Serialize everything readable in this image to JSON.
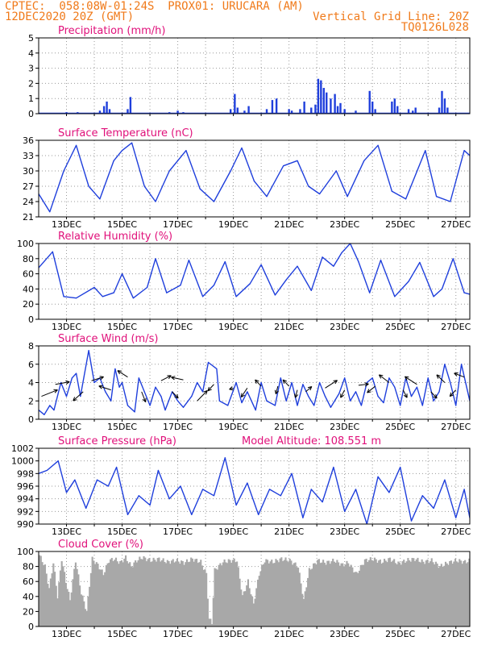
{
  "header": {
    "line1_left": "CPTEC:  058:08W-01:24S  PROX01: URUCARA (AM)",
    "line2_left": "12DEC2020 20Z (GMT)",
    "line2_right": "Vertical Grid Line: 20Z",
    "line3_right": "TQ0126L028"
  },
  "colors": {
    "header": "#f07a1a",
    "panel_title": "#e0107a",
    "series": "#1f3fdc",
    "cloud": "#a8a8a8",
    "grid": "#999999"
  },
  "x_axis": {
    "start_label": "12DEC2020 20Z",
    "tick_labels": [
      "13DEC",
      "15DEC",
      "17DEC",
      "19DEC",
      "21DEC",
      "23DEC",
      "25DEC",
      "27DEC"
    ],
    "tick_days": [
      1,
      3,
      5,
      7,
      9,
      11,
      13,
      15
    ]
  },
  "chart_data": [
    {
      "type": "bar",
      "title": "Precipitation (mm/h)",
      "ylim": [
        0,
        5
      ],
      "yticks": [
        0,
        1,
        2,
        3,
        4,
        5
      ],
      "bars": [
        [
          1.0,
          0.1
        ],
        [
          1.4,
          0.1
        ],
        [
          2.2,
          0.2
        ],
        [
          2.35,
          0.5
        ],
        [
          2.45,
          0.8
        ],
        [
          2.55,
          0.3
        ],
        [
          3.2,
          0.3
        ],
        [
          3.3,
          1.1
        ],
        [
          4.7,
          0.1
        ],
        [
          5.0,
          0.2
        ],
        [
          5.2,
          0.1
        ],
        [
          6.9,
          0.3
        ],
        [
          7.05,
          1.3
        ],
        [
          7.15,
          0.4
        ],
        [
          7.4,
          0.2
        ],
        [
          7.55,
          0.5
        ],
        [
          8.2,
          0.3
        ],
        [
          8.4,
          0.9
        ],
        [
          8.55,
          1.0
        ],
        [
          9.0,
          0.3
        ],
        [
          9.1,
          0.2
        ],
        [
          9.4,
          0.3
        ],
        [
          9.55,
          0.8
        ],
        [
          9.8,
          0.4
        ],
        [
          9.95,
          0.6
        ],
        [
          10.05,
          2.3
        ],
        [
          10.15,
          2.2
        ],
        [
          10.25,
          1.7
        ],
        [
          10.35,
          1.4
        ],
        [
          10.5,
          1.0
        ],
        [
          10.65,
          1.3
        ],
        [
          10.75,
          0.5
        ],
        [
          10.85,
          0.7
        ],
        [
          11.0,
          0.3
        ],
        [
          11.4,
          0.2
        ],
        [
          11.9,
          1.5
        ],
        [
          12.0,
          0.8
        ],
        [
          12.1,
          0.3
        ],
        [
          12.7,
          0.8
        ],
        [
          12.8,
          1.0
        ],
        [
          12.9,
          0.5
        ],
        [
          13.3,
          0.3
        ],
        [
          13.45,
          0.2
        ],
        [
          13.55,
          0.4
        ],
        [
          14.4,
          0.4
        ],
        [
          14.5,
          1.5
        ],
        [
          14.6,
          1.0
        ],
        [
          14.7,
          0.4
        ]
      ]
    },
    {
      "type": "line",
      "title": "Surface Temperature (nC)",
      "ylim": [
        21,
        36
      ],
      "yticks": [
        21,
        24,
        27,
        30,
        33,
        36
      ],
      "points": [
        [
          0,
          25.5
        ],
        [
          0.4,
          22
        ],
        [
          0.9,
          30
        ],
        [
          1.35,
          35
        ],
        [
          1.8,
          27
        ],
        [
          2.2,
          24.5
        ],
        [
          2.7,
          32
        ],
        [
          3.0,
          34
        ],
        [
          3.35,
          35.5
        ],
        [
          3.8,
          27
        ],
        [
          4.2,
          24
        ],
        [
          4.7,
          30
        ],
        [
          5.3,
          34
        ],
        [
          5.8,
          26.5
        ],
        [
          6.3,
          24
        ],
        [
          6.9,
          30
        ],
        [
          7.3,
          34.5
        ],
        [
          7.75,
          28
        ],
        [
          8.2,
          25
        ],
        [
          8.8,
          31
        ],
        [
          9.3,
          32
        ],
        [
          9.7,
          27
        ],
        [
          10.1,
          25.5
        ],
        [
          10.7,
          30
        ],
        [
          11.1,
          25
        ],
        [
          11.7,
          32
        ],
        [
          12.2,
          35
        ],
        [
          12.7,
          26
        ],
        [
          13.2,
          24.5
        ],
        [
          13.9,
          34
        ],
        [
          14.3,
          25
        ],
        [
          14.8,
          24
        ],
        [
          15.3,
          34
        ],
        [
          15.5,
          33
        ]
      ]
    },
    {
      "type": "line",
      "title": "Relative Humidity (%)",
      "ylim": [
        0,
        100
      ],
      "yticks": [
        0,
        20,
        40,
        60,
        80,
        100
      ],
      "points": [
        [
          0,
          68
        ],
        [
          0.5,
          89
        ],
        [
          0.9,
          30
        ],
        [
          1.35,
          28
        ],
        [
          2.0,
          42
        ],
        [
          2.3,
          30
        ],
        [
          2.7,
          35
        ],
        [
          3.0,
          60
        ],
        [
          3.4,
          28
        ],
        [
          3.9,
          42
        ],
        [
          4.2,
          80
        ],
        [
          4.6,
          35
        ],
        [
          5.1,
          45
        ],
        [
          5.4,
          78
        ],
        [
          5.9,
          30
        ],
        [
          6.3,
          45
        ],
        [
          6.7,
          76
        ],
        [
          7.1,
          30
        ],
        [
          7.6,
          47
        ],
        [
          8.0,
          72
        ],
        [
          8.5,
          32
        ],
        [
          8.9,
          52
        ],
        [
          9.3,
          70
        ],
        [
          9.8,
          38
        ],
        [
          10.2,
          82
        ],
        [
          10.6,
          70
        ],
        [
          10.9,
          88
        ],
        [
          11.2,
          100
        ],
        [
          11.5,
          76
        ],
        [
          11.9,
          35
        ],
        [
          12.3,
          78
        ],
        [
          12.8,
          30
        ],
        [
          13.3,
          50
        ],
        [
          13.7,
          75
        ],
        [
          14.2,
          30
        ],
        [
          14.5,
          40
        ],
        [
          14.9,
          80
        ],
        [
          15.3,
          35
        ],
        [
          15.5,
          33
        ]
      ]
    },
    {
      "type": "line",
      "title": "Surface Wind (m/s)",
      "ylim": [
        0,
        8
      ],
      "yticks": [
        0,
        2,
        4,
        6,
        8
      ],
      "points": [
        [
          0,
          1.0
        ],
        [
          0.2,
          0.5
        ],
        [
          0.4,
          1.5
        ],
        [
          0.55,
          1.0
        ],
        [
          0.8,
          4.0
        ],
        [
          1.0,
          2.5
        ],
        [
          1.2,
          4.5
        ],
        [
          1.35,
          5.0
        ],
        [
          1.5,
          2.5
        ],
        [
          1.8,
          7.5
        ],
        [
          2.0,
          4.0
        ],
        [
          2.2,
          4.5
        ],
        [
          2.4,
          3.0
        ],
        [
          2.6,
          2.0
        ],
        [
          2.75,
          5.5
        ],
        [
          2.9,
          3.5
        ],
        [
          3.0,
          4.0
        ],
        [
          3.2,
          1.5
        ],
        [
          3.45,
          0.8
        ],
        [
          3.6,
          4.5
        ],
        [
          3.8,
          3.0
        ],
        [
          4.0,
          1.5
        ],
        [
          4.2,
          3.5
        ],
        [
          4.4,
          2.5
        ],
        [
          4.55,
          1.0
        ],
        [
          4.8,
          3.0
        ],
        [
          5.0,
          2.0
        ],
        [
          5.2,
          1.3
        ],
        [
          5.5,
          2.5
        ],
        [
          5.7,
          4.0
        ],
        [
          5.9,
          3.0
        ],
        [
          6.1,
          6.2
        ],
        [
          6.4,
          5.5
        ],
        [
          6.5,
          2.0
        ],
        [
          6.8,
          1.5
        ],
        [
          7.1,
          4.0
        ],
        [
          7.3,
          1.8
        ],
        [
          7.5,
          3.0
        ],
        [
          7.8,
          1.0
        ],
        [
          8.0,
          4.0
        ],
        [
          8.2,
          2.0
        ],
        [
          8.5,
          1.5
        ],
        [
          8.7,
          4.5
        ],
        [
          8.9,
          2.0
        ],
        [
          9.1,
          4.0
        ],
        [
          9.3,
          1.5
        ],
        [
          9.5,
          3.8
        ],
        [
          9.7,
          2.5
        ],
        [
          9.9,
          1.5
        ],
        [
          10.1,
          4.0
        ],
        [
          10.3,
          2.5
        ],
        [
          10.5,
          1.3
        ],
        [
          10.8,
          2.8
        ],
        [
          11.0,
          4.5
        ],
        [
          11.2,
          2.0
        ],
        [
          11.4,
          3.0
        ],
        [
          11.6,
          1.5
        ],
        [
          11.8,
          4.0
        ],
        [
          12.0,
          4.5
        ],
        [
          12.2,
          2.5
        ],
        [
          12.4,
          1.8
        ],
        [
          12.6,
          4.5
        ],
        [
          12.8,
          3.5
        ],
        [
          13.0,
          1.5
        ],
        [
          13.2,
          4.5
        ],
        [
          13.4,
          2.5
        ],
        [
          13.6,
          3.5
        ],
        [
          13.8,
          1.5
        ],
        [
          14.0,
          4.5
        ],
        [
          14.2,
          2.0
        ],
        [
          14.4,
          3.0
        ],
        [
          14.6,
          6.0
        ],
        [
          14.8,
          4.0
        ],
        [
          15.0,
          1.5
        ],
        [
          15.2,
          6.0
        ],
        [
          15.5,
          2.0
        ]
      ],
      "vectors": [
        [
          0.1,
          2.5,
          0.8,
          0.5
        ],
        [
          0.6,
          3.8,
          0.7,
          0.2
        ],
        [
          1.6,
          3.0,
          -0.5,
          -0.7
        ],
        [
          1.9,
          4.2,
          0.6,
          0.3
        ],
        [
          2.6,
          3.2,
          -0.6,
          0.3
        ],
        [
          3.2,
          4.6,
          -0.5,
          0.5
        ],
        [
          3.7,
          3.0,
          0.2,
          -0.8
        ],
        [
          4.4,
          4.2,
          0.5,
          0.4
        ],
        [
          4.8,
          3.0,
          0.3,
          -0.5
        ],
        [
          5.2,
          4.3,
          -0.6,
          0.2
        ],
        [
          5.7,
          2.0,
          0.5,
          0.8
        ],
        [
          6.3,
          3.8,
          -0.3,
          -0.5
        ],
        [
          7.0,
          3.4,
          -0.2,
          -0.1
        ],
        [
          7.5,
          3.4,
          -0.3,
          -0.7
        ],
        [
          8.0,
          3.6,
          -0.3,
          0.5
        ],
        [
          8.6,
          3.6,
          -0.1,
          -0.6
        ],
        [
          9.0,
          3.6,
          -0.3,
          0.5
        ],
        [
          9.3,
          3.2,
          -0.1,
          -0.6
        ],
        [
          9.6,
          3.0,
          0.3,
          0.4
        ],
        [
          10.3,
          3.4,
          0.6,
          0.6
        ],
        [
          11.0,
          3.2,
          -0.2,
          -0.6
        ],
        [
          11.5,
          3.7,
          0.5,
          0.1
        ],
        [
          12.1,
          3.6,
          -0.4,
          -0.5
        ],
        [
          12.6,
          4.0,
          -0.5,
          0.6
        ],
        [
          13.1,
          3.2,
          0.2,
          -0.6
        ],
        [
          13.6,
          3.8,
          -0.6,
          0.6
        ],
        [
          14.1,
          3.0,
          0.3,
          -0.5
        ],
        [
          14.6,
          4.0,
          -0.4,
          0.6
        ],
        [
          15.0,
          3.2,
          -0.3,
          -0.5
        ],
        [
          15.3,
          4.6,
          -0.5,
          0.3
        ]
      ]
    },
    {
      "type": "line",
      "title": "Surface Pressure (hPa)",
      "annotation": "Model Altitude: 108.551 m",
      "ylim": [
        990,
        1002
      ],
      "yticks": [
        990,
        992,
        994,
        996,
        998,
        1000,
        1002
      ],
      "points": [
        [
          0,
          998
        ],
        [
          0.3,
          998.5
        ],
        [
          0.7,
          1000
        ],
        [
          1.0,
          995
        ],
        [
          1.3,
          997
        ],
        [
          1.7,
          992.5
        ],
        [
          2.1,
          997
        ],
        [
          2.5,
          996
        ],
        [
          2.8,
          999
        ],
        [
          3.2,
          991.5
        ],
        [
          3.6,
          994.5
        ],
        [
          4.0,
          993
        ],
        [
          4.3,
          998.5
        ],
        [
          4.7,
          994
        ],
        [
          5.1,
          996
        ],
        [
          5.5,
          991.5
        ],
        [
          5.9,
          995.5
        ],
        [
          6.3,
          994.5
        ],
        [
          6.7,
          1000.5
        ],
        [
          7.1,
          993
        ],
        [
          7.5,
          996.5
        ],
        [
          7.9,
          991.5
        ],
        [
          8.3,
          995.5
        ],
        [
          8.7,
          994.5
        ],
        [
          9.1,
          998
        ],
        [
          9.5,
          991
        ],
        [
          9.8,
          995.5
        ],
        [
          10.2,
          993.5
        ],
        [
          10.6,
          999
        ],
        [
          11.0,
          992
        ],
        [
          11.4,
          995.5
        ],
        [
          11.8,
          990
        ],
        [
          12.2,
          997.5
        ],
        [
          12.6,
          995
        ],
        [
          13.0,
          999
        ],
        [
          13.4,
          990.5
        ],
        [
          13.8,
          994.5
        ],
        [
          14.2,
          992.5
        ],
        [
          14.6,
          997
        ],
        [
          15.0,
          991
        ],
        [
          15.3,
          995.5
        ],
        [
          15.5,
          991
        ]
      ]
    },
    {
      "type": "area",
      "title": "Cloud Cover (%)",
      "ylim": [
        0,
        100
      ],
      "yticks": [
        0,
        20,
        40,
        60,
        80,
        100
      ],
      "points": [
        [
          0,
          95
        ],
        [
          0.2,
          80
        ],
        [
          0.35,
          50
        ],
        [
          0.5,
          85
        ],
        [
          0.65,
          40
        ],
        [
          0.8,
          90
        ],
        [
          0.95,
          60
        ],
        [
          1.1,
          35
        ],
        [
          1.3,
          88
        ],
        [
          1.5,
          45
        ],
        [
          1.7,
          20
        ],
        [
          1.9,
          90
        ],
        [
          2.1,
          82
        ],
        [
          2.3,
          70
        ],
        [
          2.5,
          88
        ],
        [
          2.7,
          90
        ],
        [
          2.9,
          85
        ],
        [
          3.1,
          92
        ],
        [
          3.3,
          80
        ],
        [
          3.5,
          88
        ],
        [
          3.7,
          92
        ],
        [
          4.0,
          88
        ],
        [
          4.3,
          90
        ],
        [
          4.6,
          86
        ],
        [
          4.9,
          88
        ],
        [
          5.2,
          85
        ],
        [
          5.5,
          90
        ],
        [
          5.8,
          86
        ],
        [
          6.0,
          70
        ],
        [
          6.1,
          10
        ],
        [
          6.2,
          5
        ],
        [
          6.3,
          75
        ],
        [
          6.6,
          86
        ],
        [
          6.9,
          88
        ],
        [
          7.1,
          88
        ],
        [
          7.3,
          40
        ],
        [
          7.5,
          60
        ],
        [
          7.7,
          30
        ],
        [
          7.9,
          70
        ],
        [
          8.1,
          88
        ],
        [
          8.4,
          86
        ],
        [
          8.7,
          90
        ],
        [
          9.0,
          88
        ],
        [
          9.3,
          80
        ],
        [
          9.5,
          35
        ],
        [
          9.7,
          75
        ],
        [
          10.0,
          88
        ],
        [
          10.3,
          85
        ],
        [
          10.6,
          88
        ],
        [
          10.9,
          82
        ],
        [
          11.1,
          85
        ],
        [
          11.4,
          70
        ],
        [
          11.7,
          88
        ],
        [
          12.0,
          90
        ],
        [
          12.3,
          86
        ],
        [
          12.6,
          90
        ],
        [
          12.9,
          84
        ],
        [
          13.2,
          88
        ],
        [
          13.5,
          90
        ],
        [
          13.8,
          86
        ],
        [
          14.1,
          88
        ],
        [
          14.4,
          80
        ],
        [
          14.7,
          85
        ],
        [
          15.0,
          88
        ],
        [
          15.3,
          86
        ],
        [
          15.5,
          88
        ]
      ]
    }
  ]
}
